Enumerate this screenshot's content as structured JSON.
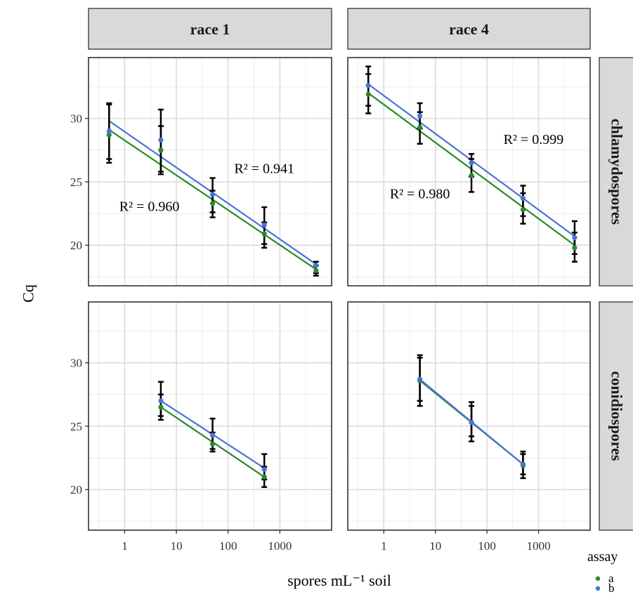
{
  "chart_data": {
    "type": "scatter",
    "title": "",
    "xlabel": "spores mL⁻¹ soil",
    "ylabel": "Cq",
    "x_scale": "log10",
    "x_ticks": [
      1,
      10,
      100,
      1000
    ],
    "x_tick_labels": [
      "1",
      "10",
      "100",
      "1000"
    ],
    "xlim": [
      0.2,
      10000
    ],
    "y_ticks": [
      20,
      25,
      30
    ],
    "y_tick_labels": [
      "20",
      "25",
      "30"
    ],
    "ylim": [
      16.8,
      34.8
    ],
    "grid": true,
    "col_strips": [
      "race 1",
      "race 4"
    ],
    "row_strips": [
      "chlamydospores",
      "conidiospores"
    ],
    "legend": {
      "title": "assay",
      "position": "bottom-right",
      "entries": [
        {
          "label": "a",
          "color": "#2a8a2a"
        },
        {
          "label": "b",
          "color": "#4a72d8"
        }
      ]
    },
    "panels": [
      {
        "col": 0,
        "row": 0,
        "annotations": [
          {
            "text": "R² = 0.941",
            "x": 500,
            "y": 25.7
          },
          {
            "text": "R² = 0.960",
            "x": 3,
            "y": 22.7
          }
        ],
        "series": [
          {
            "name": "a",
            "x": [
              0.5,
              5,
              50,
              500,
              5000
            ],
            "y": [
              28.7,
              27.5,
              23.3,
              20.9,
              18.0
            ],
            "ymin": [
              26.5,
              25.6,
              22.2,
              19.8,
              17.6
            ],
            "ymax": [
              31.1,
              29.4,
              24.3,
              21.8,
              18.4
            ],
            "fit": [
              [
                0.5,
                29.1
              ],
              [
                5000,
                18.1
              ]
            ]
          },
          {
            "name": "b",
            "x": [
              0.5,
              5,
              50,
              500,
              5000
            ],
            "y": [
              29.0,
              28.3,
              24.0,
              21.6,
              18.4
            ],
            "ymin": [
              26.8,
              25.8,
              22.6,
              20.1,
              17.8
            ],
            "ymax": [
              31.2,
              30.7,
              25.3,
              23.0,
              18.7
            ],
            "fit": [
              [
                0.5,
                29.8
              ],
              [
                5000,
                18.5
              ]
            ]
          }
        ]
      },
      {
        "col": 1,
        "row": 0,
        "annotations": [
          {
            "text": "R² = 0.999",
            "x": 800,
            "y": 28.0
          },
          {
            "text": "R² = 0.980",
            "x": 5,
            "y": 23.7
          }
        ],
        "series": [
          {
            "name": "a",
            "x": [
              0.5,
              5,
              50,
              500,
              5000
            ],
            "y": [
              31.9,
              29.3,
              25.5,
              22.8,
              19.8
            ],
            "ymin": [
              30.4,
              28.0,
              24.2,
              21.7,
              18.7
            ],
            "ymax": [
              33.5,
              30.5,
              26.8,
              24.1,
              21.0
            ],
            "fit": [
              [
                0.5,
                32.0
              ],
              [
                5000,
                20.0
              ]
            ]
          },
          {
            "name": "b",
            "x": [
              0.5,
              5,
              50,
              500,
              5000
            ],
            "y": [
              32.6,
              30.2,
              26.5,
              23.7,
              20.6
            ],
            "ymin": [
              31.0,
              29.2,
              25.4,
              22.3,
              19.3
            ],
            "ymax": [
              34.1,
              31.2,
              27.2,
              24.7,
              21.9
            ],
            "fit": [
              [
                0.5,
                32.7
              ],
              [
                5000,
                20.7
              ]
            ]
          }
        ]
      },
      {
        "col": 0,
        "row": 1,
        "annotations": [],
        "series": [
          {
            "name": "a",
            "x": [
              5,
              50,
              500
            ],
            "y": [
              26.5,
              23.6,
              21.0
            ],
            "ymin": [
              25.5,
              23.0,
              20.2
            ],
            "ymax": [
              27.5,
              24.5,
              21.8
            ],
            "fit": [
              [
                5,
                26.5
              ],
              [
                500,
                21.0
              ]
            ]
          },
          {
            "name": "b",
            "x": [
              5,
              50,
              500
            ],
            "y": [
              27.0,
              24.3,
              21.6
            ],
            "ymin": [
              25.8,
              23.2,
              20.8
            ],
            "ymax": [
              28.5,
              25.6,
              22.8
            ],
            "fit": [
              [
                5,
                27.0
              ],
              [
                500,
                21.7
              ]
            ]
          }
        ]
      },
      {
        "col": 1,
        "row": 1,
        "annotations": [],
        "series": [
          {
            "name": "a",
            "x": [
              5,
              50,
              500
            ],
            "y": [
              28.6,
              25.3,
              21.9
            ],
            "ymin": [
              26.6,
              23.8,
              20.9
            ],
            "ymax": [
              30.4,
              26.6,
              22.8
            ],
            "fit": [
              [
                5,
                28.6
              ],
              [
                500,
                22.0
              ]
            ]
          },
          {
            "name": "b",
            "x": [
              5,
              50,
              500
            ],
            "y": [
              28.7,
              25.3,
              22.0
            ],
            "ymin": [
              27.0,
              24.2,
              21.2
            ],
            "ymax": [
              30.6,
              26.9,
              23.0
            ],
            "fit": [
              [
                5,
                28.7
              ],
              [
                500,
                22.0
              ]
            ]
          }
        ]
      }
    ]
  }
}
